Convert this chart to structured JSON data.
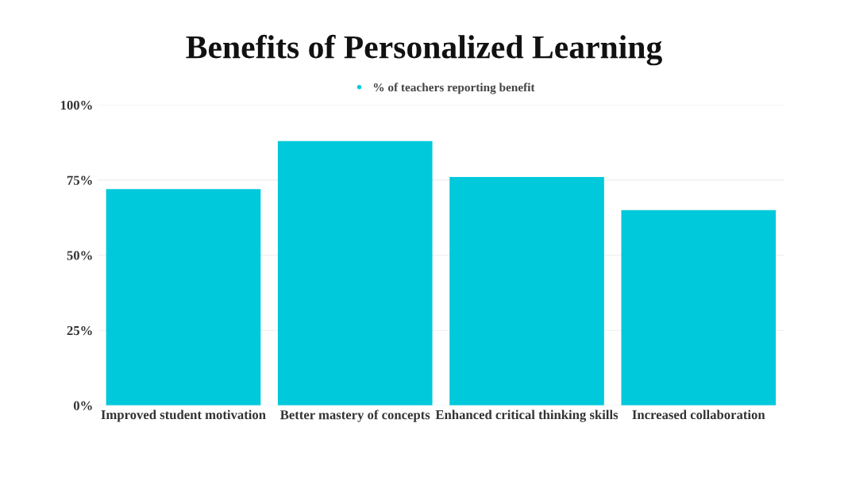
{
  "chart_data": {
    "type": "bar",
    "title": "Benefits of Personalized Learning",
    "categories": [
      "Improved student motivation",
      "Better mastery of concepts",
      "Enhanced critical thinking skills",
      "Increased collaboration"
    ],
    "series": [
      {
        "name": "% of teachers reporting benefit",
        "color": "#00c9dc",
        "values": [
          72,
          88,
          76,
          65
        ]
      }
    ],
    "ylim": [
      0,
      100
    ],
    "yticks": [
      {
        "value": 0,
        "label": "0%"
      },
      {
        "value": 25,
        "label": "25%"
      },
      {
        "value": 50,
        "label": "50%"
      },
      {
        "value": 75,
        "label": "75%"
      },
      {
        "value": 100,
        "label": "100%"
      }
    ],
    "grid": "y",
    "legend": "top"
  }
}
